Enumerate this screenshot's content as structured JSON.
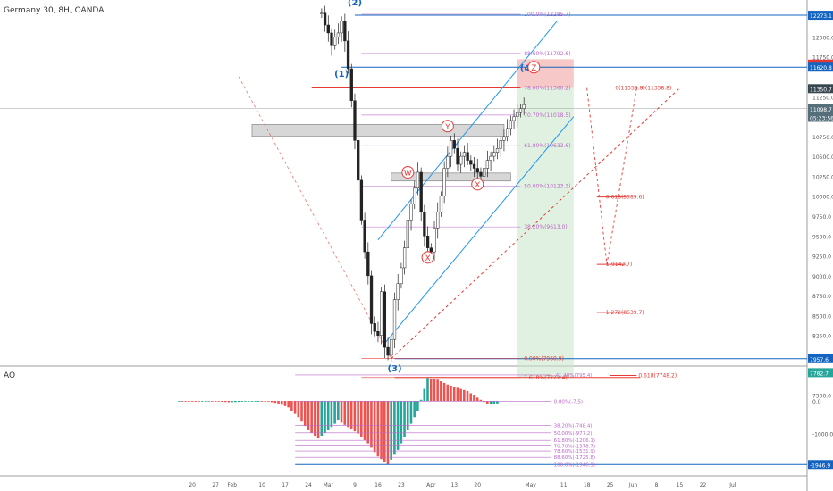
{
  "header": {
    "symbol": "Germany 30, 8H, OANDA"
  },
  "indicator": {
    "name": "AO"
  },
  "colors": {
    "bull": "#26a69a",
    "bear": "#ef5350",
    "candle": "#222222",
    "channel": "#2196f3",
    "fib": "#ba68c8",
    "target": "#e53935",
    "wave": "#1565c0",
    "wxy": "#e53935"
  },
  "price_axis": {
    "ticks": [
      "12000.0",
      "11750.0",
      "11250.0",
      "11000.0",
      "10750.0",
      "10500.0",
      "10250.0",
      "10000.0",
      "9750.0",
      "9500.0",
      "9250.0",
      "9000.0",
      "8750.0",
      "8500.0",
      "8250.0",
      "8000.0",
      "7500.0"
    ],
    "tick_values": [
      12000,
      11750,
      11250,
      11000,
      10750,
      10500,
      10250,
      10000,
      9750,
      9500,
      9250,
      9000,
      8750,
      8500,
      8250,
      8000,
      7500
    ],
    "badges": [
      {
        "text": "12273.1",
        "value": 12273.1,
        "color": "#1565c0"
      },
      {
        "text": "11659.3",
        "value": 11659.3,
        "color": "#e53935"
      },
      {
        "text": "11620.8",
        "value": 11620.8,
        "color": "#1565c0"
      },
      {
        "text": "11350.7",
        "value": 11350.7,
        "color": "#37474f"
      },
      {
        "text": "11098.7",
        "value": 11098.7,
        "color": "#546e7a"
      },
      {
        "text": "05:23:56",
        "value": 10990,
        "color": "#546e7a"
      },
      {
        "text": "7957.6",
        "value": 7957.6,
        "color": "#1565c0"
      },
      {
        "text": "7782.7",
        "value": 7782.7,
        "color": "#26a69a"
      }
    ]
  },
  "ao_axis": {
    "ticks": [
      "0.0",
      "-1000.0"
    ],
    "tick_values": [
      0,
      -1000
    ],
    "badges": [
      {
        "text": "-1946.9",
        "value": -1946.9,
        "color": "#1565c0"
      }
    ]
  },
  "time_axis": {
    "labels": [
      "20",
      "27",
      "Feb",
      "10",
      "17",
      "24",
      "Mar",
      "9",
      "16",
      "23",
      "Apr",
      "13",
      "20",
      "May",
      "11",
      "18",
      "25",
      "Jun",
      "8",
      "15",
      "22",
      "Jul"
    ],
    "days": [
      -11,
      -4,
      1,
      10,
      17,
      24,
      30,
      38,
      45,
      52,
      61,
      68,
      75,
      91,
      101,
      108,
      115,
      122,
      129,
      136,
      143,
      152
    ]
  },
  "waves": [
    {
      "text": "(2)",
      "day": 38,
      "price": 12400
    },
    {
      "text": "(1)",
      "day": 34,
      "price": 11500
    },
    {
      "text": "(3)",
      "day": 50,
      "price": 7800
    },
    {
      "text": "(4)",
      "day": 90,
      "price": 11570
    }
  ],
  "wxy": [
    {
      "text": "W",
      "day": 54,
      "price": 10300
    },
    {
      "text": "Y",
      "day": 66,
      "price": 10880
    },
    {
      "text": "X",
      "day": 60,
      "price": 9230
    },
    {
      "text": "X",
      "day": 75,
      "price": 10150
    },
    {
      "text": "Z",
      "day": 92,
      "price": 11620
    }
  ],
  "fib_retracement": [
    {
      "text": "100.0%(12285.7)",
      "value": 12285.7
    },
    {
      "text": "88.60%(11792.6)",
      "value": 11792.6
    },
    {
      "text": "78.60%(11360.2)",
      "value": 11360.2
    },
    {
      "text": "70.70%(11018.5)",
      "value": 11018.5
    },
    {
      "text": "61.80%(10633.6)",
      "value": 10633.6
    },
    {
      "text": "50.00%(10123.3)",
      "value": 10123.3
    },
    {
      "text": "38.20%(9613.0)",
      "value": 9613
    },
    {
      "text": "0.00%(7960.9)",
      "value": 7960.9
    },
    {
      "text": "1.618%(7722.4)",
      "value": 7722.4
    }
  ],
  "projection": [
    {
      "text": "0(11359.8)",
      "value": 11359.8,
      "day": 116
    },
    {
      "text": "0(11358.8)",
      "value": 11358.8,
      "day": 124
    },
    {
      "text": "0.618(9989.6)",
      "value": 9989.6,
      "day": 111
    },
    {
      "text": "1(9142.7)",
      "value": 9142.7,
      "day": 111
    },
    {
      "text": "1.272(8539.7)",
      "value": 8539.7,
      "day": 111
    },
    {
      "text": "0.618(7748.2)",
      "value": 7748.2,
      "day": 123
    }
  ],
  "ao_fib": [
    {
      "text": "-41.40%(795.4)",
      "value": 795.4
    },
    {
      "text": "0.00%(-7.5)",
      "value": -7.5
    },
    {
      "text": "38.20%(-748.4)",
      "value": -748.4
    },
    {
      "text": "50.00%(-977.2)",
      "value": -977.2
    },
    {
      "text": "61.80%(-1206.1)",
      "value": -1206.1
    },
    {
      "text": "70.70%(-1378.7)",
      "value": -1378.7
    },
    {
      "text": "78.60%(-1531.9)",
      "value": -1531.9
    },
    {
      "text": "88.60%(-1725.8)",
      "value": -1725.8
    },
    {
      "text": "100.0%(-1946.9)",
      "value": -1946.9
    }
  ],
  "chart_data": {
    "type": "line",
    "title": "Germany 30, 8H, OANDA",
    "xlabel": "",
    "ylabel": "",
    "x_unit": "days from Feb 1 (2020)",
    "ylim": [
      7400,
      12500
    ],
    "series": [
      {
        "x": [
          28,
          29,
          30,
          31,
          32,
          33,
          34,
          35,
          36,
          37,
          38,
          39,
          40,
          41,
          42,
          43,
          44,
          45,
          46,
          47,
          48,
          49,
          50,
          51,
          52,
          53,
          54,
          55,
          56,
          57,
          58,
          59,
          60,
          61,
          62,
          63,
          64,
          65,
          66,
          67,
          68,
          69,
          70,
          71,
          72,
          73,
          74,
          75,
          76,
          77,
          78,
          79,
          80,
          81,
          82,
          83,
          84,
          85,
          86,
          87,
          88,
          89
        ],
        "values": [
          12300,
          12150,
          12050,
          11900,
          12000,
          12050,
          12200,
          11950,
          11600,
          11200,
          10700,
          10200,
          9700,
          9300,
          9000,
          8400,
          8300,
          8250,
          8800,
          8100,
          8000,
          8200,
          8700,
          8900,
          9100,
          9350,
          9700,
          9900,
          10100,
          10300,
          9800,
          9500,
          9350,
          9300,
          9600,
          9800,
          10000,
          10350,
          10500,
          10700,
          10600,
          10400,
          10500,
          10550,
          10450,
          10400,
          10350,
          10300,
          10250,
          10350,
          10450,
          10500,
          10550,
          10600,
          10700,
          10750,
          10850,
          10950,
          11000,
          11050,
          11100,
          11150
        ]
      }
    ],
    "ao": {
      "x": [
        -15,
        -12,
        -9,
        -6,
        -3,
        0,
        3,
        6,
        9,
        12,
        15,
        18,
        21,
        24,
        27,
        30,
        33,
        36,
        39,
        42,
        45,
        48,
        51,
        54,
        57,
        60,
        63,
        66,
        69,
        72,
        75,
        78,
        81,
        84,
        87,
        90
      ],
      "values": [
        0,
        -5,
        -10,
        -5,
        -20,
        -40,
        -30,
        -10,
        -5,
        -20,
        -80,
        -200,
        -500,
        -900,
        -1150,
        -900,
        -600,
        -800,
        -1000,
        -1300,
        -1700,
        -1946.9,
        -1500,
        -900,
        -300,
        700,
        650,
        500,
        400,
        300,
        100,
        -100,
        -80,
        -40,
        80,
        240
      ]
    }
  }
}
